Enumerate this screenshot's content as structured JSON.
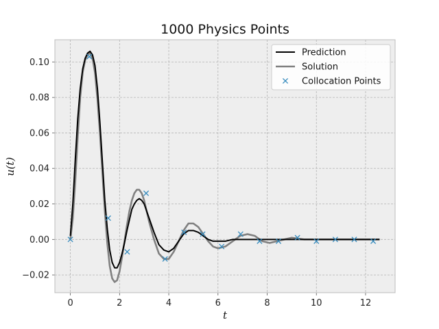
{
  "chart_data": {
    "type": "line",
    "title": "1000 Physics Points",
    "xlabel": "t",
    "ylabel": "u(t)",
    "xlim": [
      -0.63,
      13.2
    ],
    "ylim": [
      -0.03,
      0.1125
    ],
    "xticks": [
      0,
      2,
      4,
      6,
      8,
      10,
      12
    ],
    "yticks": [
      -0.02,
      0.0,
      0.02,
      0.04,
      0.06,
      0.08,
      0.1
    ],
    "ytick_labels": [
      "−0.02",
      "0.00",
      "0.02",
      "0.04",
      "0.06",
      "0.08",
      "0.10"
    ],
    "grid": true,
    "legend_position": "top-right",
    "series": [
      {
        "name": "Solution",
        "color": "#808080",
        "x": [
          0,
          0.1,
          0.2,
          0.3,
          0.4,
          0.5,
          0.6,
          0.7,
          0.8,
          0.9,
          1.0,
          1.1,
          1.2,
          1.3,
          1.4,
          1.5,
          1.6,
          1.7,
          1.8,
          1.9,
          2.0,
          2.1,
          2.2,
          2.3,
          2.4,
          2.5,
          2.6,
          2.7,
          2.8,
          2.9,
          3.0,
          3.1,
          3.2,
          3.4,
          3.6,
          3.8,
          4.0,
          4.2,
          4.4,
          4.6,
          4.8,
          5.0,
          5.2,
          5.4,
          5.6,
          5.8,
          6.0,
          6.3,
          6.6,
          6.9,
          7.2,
          7.5,
          7.8,
          8.1,
          8.4,
          8.7,
          9.0,
          9.5,
          10.0,
          10.5,
          11.0,
          11.5,
          12.0,
          12.57
        ],
        "y": [
          0.0,
          0.012,
          0.033,
          0.058,
          0.08,
          0.094,
          0.101,
          0.104,
          0.105,
          0.102,
          0.094,
          0.079,
          0.06,
          0.038,
          0.016,
          -0.002,
          -0.015,
          -0.022,
          -0.024,
          -0.023,
          -0.018,
          -0.01,
          -0.001,
          0.008,
          0.016,
          0.022,
          0.026,
          0.028,
          0.028,
          0.026,
          0.022,
          0.016,
          0.01,
          0.0,
          -0.008,
          -0.011,
          -0.011,
          -0.007,
          -0.001,
          0.005,
          0.009,
          0.009,
          0.007,
          0.003,
          -0.001,
          -0.004,
          -0.005,
          -0.004,
          -0.001,
          0.002,
          0.003,
          0.002,
          -0.001,
          -0.002,
          -0.001,
          0.0,
          0.001,
          0.0,
          0.0,
          0.0,
          0.0,
          0.0,
          0.0,
          0.0
        ]
      },
      {
        "name": "Prediction",
        "color": "#000000",
        "x": [
          0,
          0.1,
          0.2,
          0.3,
          0.4,
          0.5,
          0.6,
          0.7,
          0.8,
          0.9,
          1.0,
          1.1,
          1.2,
          1.3,
          1.4,
          1.5,
          1.6,
          1.7,
          1.8,
          1.9,
          2.0,
          2.1,
          2.2,
          2.3,
          2.4,
          2.5,
          2.6,
          2.7,
          2.8,
          2.9,
          3.0,
          3.1,
          3.2,
          3.4,
          3.6,
          3.8,
          4.0,
          4.2,
          4.4,
          4.6,
          4.8,
          5.0,
          5.2,
          5.4,
          5.6,
          5.8,
          6.0,
          6.3,
          6.6,
          6.9,
          7.2,
          7.5,
          7.8,
          8.1,
          8.4,
          8.7,
          9.0,
          9.5,
          10.0,
          10.5,
          11.0,
          11.5,
          12.0,
          12.57
        ],
        "y": [
          0.002,
          0.02,
          0.045,
          0.068,
          0.085,
          0.096,
          0.102,
          0.105,
          0.106,
          0.104,
          0.098,
          0.085,
          0.066,
          0.044,
          0.022,
          0.006,
          -0.006,
          -0.013,
          -0.016,
          -0.016,
          -0.013,
          -0.008,
          -0.002,
          0.005,
          0.011,
          0.017,
          0.02,
          0.022,
          0.023,
          0.022,
          0.02,
          0.016,
          0.012,
          0.004,
          -0.003,
          -0.006,
          -0.007,
          -0.005,
          -0.001,
          0.003,
          0.005,
          0.005,
          0.004,
          0.002,
          0.0,
          -0.001,
          -0.001,
          -0.001,
          0.0,
          0.0,
          0.0,
          0.0,
          0.0,
          0.0,
          0.0,
          0.0,
          0.0,
          0.0,
          0.0,
          0.0,
          0.0,
          0.0,
          0.0,
          0.0
        ]
      },
      {
        "name": "Collocation Points",
        "color": "#348ABD",
        "marker": "x",
        "x": [
          0.0,
          0.77,
          1.54,
          2.31,
          3.08,
          3.85,
          4.62,
          5.38,
          6.15,
          6.92,
          7.69,
          8.46,
          9.23,
          10.0,
          10.77,
          11.54,
          12.31
        ],
        "y": [
          0.0,
          0.103,
          0.012,
          -0.007,
          0.026,
          -0.011,
          0.004,
          0.003,
          -0.004,
          0.003,
          -0.001,
          -0.001,
          0.001,
          -0.001,
          0.0,
          0.0,
          -0.001
        ]
      }
    ],
    "legend_order": [
      "Prediction",
      "Solution",
      "Collocation Points"
    ]
  }
}
